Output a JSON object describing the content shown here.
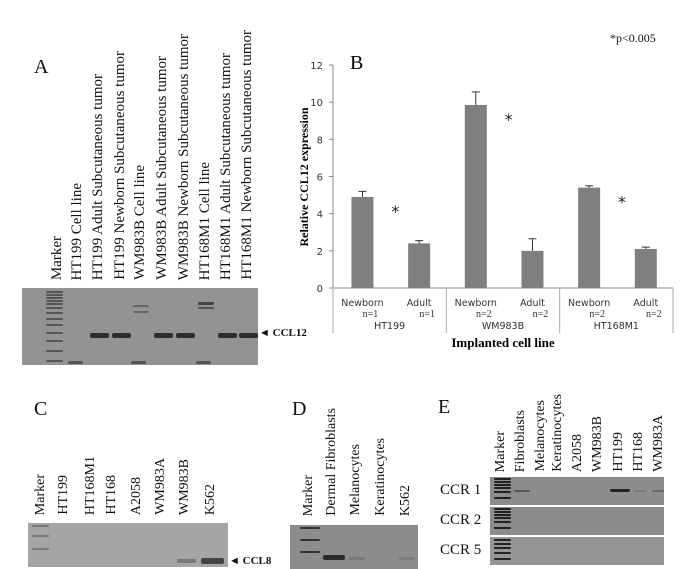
{
  "footnote": "*p<0.005",
  "panel_a": {
    "label": "A",
    "lanes": [
      "Marker",
      "HT199 Cell line",
      "HT199 Adult  Subcutaneous tumor",
      "HT199 Newborn Subcutaneous tumor",
      "WM983B Cell line",
      "WM983B Adult  Subcutaneous tumor",
      "WM983B Newborn  Subcutaneous tumor",
      "HT168M1  Cell line",
      "HT168M1  Adult  Subcutaneous tumor",
      "HT168M1  Newborn  Subcutaneous tumor"
    ],
    "band_label": "◄ CCL12"
  },
  "panel_c": {
    "label": "C",
    "lanes": [
      "Marker",
      "HT199",
      "HT168M1",
      "HT168",
      "A2058",
      "WM983A",
      "WM983B",
      "K562"
    ],
    "band_label": "◄ CCL8"
  },
  "panel_d": {
    "label": "D",
    "lanes": [
      "Marker",
      "Dermal  Fibroblasts",
      "Melanocytes",
      "Keratinocytes",
      "K562"
    ]
  },
  "panel_e": {
    "label": "E",
    "lanes": [
      "Marker",
      "Fibroblasts",
      "Melanocytes",
      "Keratinocytes",
      "A2058",
      "WM983B",
      "HT199",
      "HT168",
      "WM983A"
    ],
    "rows": [
      "CCR 1",
      "CCR 2",
      "CCR 5"
    ]
  },
  "chart_data": {
    "type": "bar",
    "panel_label": "B",
    "ylabel": "Relative CCL12 expression",
    "xlabel": "Implanted  cell line",
    "ylim": [
      0,
      12
    ],
    "yticks": [
      0,
      2,
      4,
      6,
      8,
      10,
      12
    ],
    "groups": [
      {
        "name": "HT199",
        "bars": [
          {
            "label": "Newborn",
            "n": "n=1",
            "value": 4.9,
            "error": 0.3
          },
          {
            "label": "Adult",
            "n": "n=1",
            "value": 2.4,
            "error": 0.15
          }
        ],
        "significance": "*"
      },
      {
        "name": "WM983B",
        "bars": [
          {
            "label": "Newborn",
            "n": "n=2",
            "value": 9.85,
            "error": 0.7
          },
          {
            "label": "Adult",
            "n": "n=2",
            "value": 2.0,
            "error": 0.65
          }
        ],
        "significance": "*"
      },
      {
        "name": "HT168M1",
        "bars": [
          {
            "label": "Newborn",
            "n": "n=2",
            "value": 5.4,
            "error": 0.1
          },
          {
            "label": "Adult",
            "n": "n=2",
            "value": 2.1,
            "error": 0.1
          }
        ],
        "significance": "*"
      }
    ],
    "bar_color": "#7f7f7f",
    "grid": false
  }
}
